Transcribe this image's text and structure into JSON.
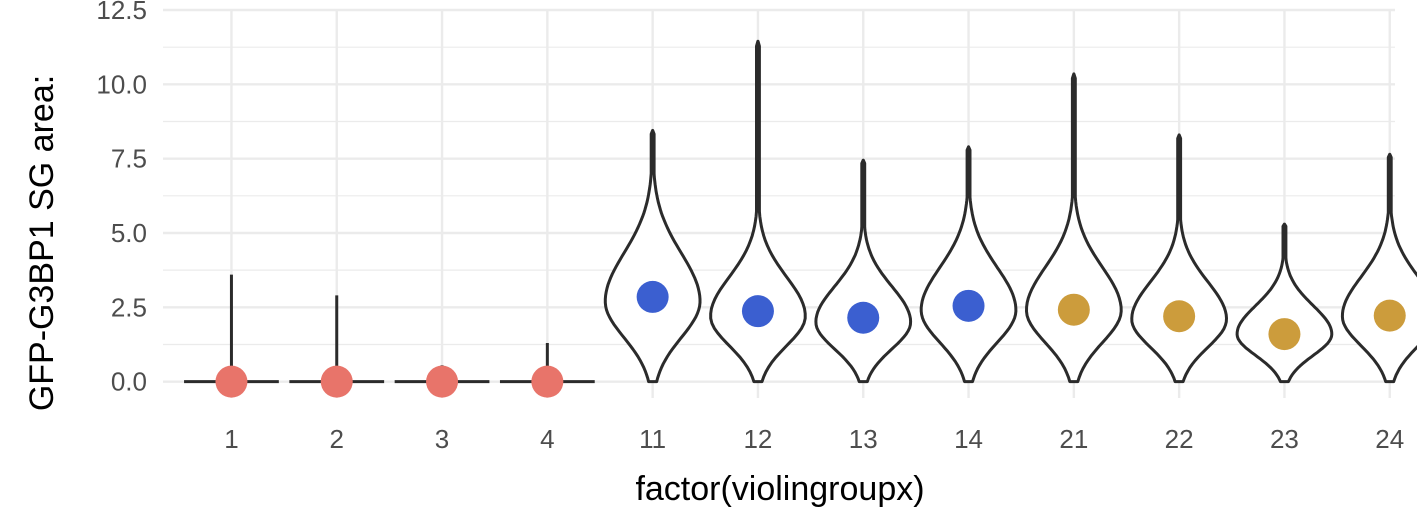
{
  "chart_data": {
    "type": "violin",
    "title": "",
    "xlabel": "factor(violingroupx)",
    "ylabel": "GFP-G3BP1 SG area:",
    "ylim": [
      -0.55,
      12.5
    ],
    "yticks": [
      "0.0",
      "2.5",
      "5.0",
      "7.5",
      "10.0",
      "12.5"
    ],
    "grid": true,
    "legend": "none",
    "categories": [
      "1",
      "2",
      "3",
      "4",
      "11",
      "12",
      "13",
      "14",
      "21",
      "22",
      "23",
      "24"
    ],
    "point_colors": [
      "#E8746A",
      "#E8746A",
      "#E8746A",
      "#E8746A",
      "#3B5FD0",
      "#3B5FD0",
      "#3B5FD0",
      "#3B5FD0",
      "#CC9C3C",
      "#CC9C3C",
      "#CC9C3C",
      "#CC9C3C"
    ],
    "violin_max": [
      3.6,
      2.9,
      0.55,
      1.3,
      8.45,
      11.45,
      7.45,
      7.9,
      10.35,
      8.3,
      5.3,
      7.65
    ],
    "violin_mode": [
      0.0,
      0.0,
      0.0,
      0.0,
      2.7,
      2.2,
      2.0,
      2.4,
      2.4,
      2.1,
      1.6,
      2.2
    ],
    "point_values": [
      0.0,
      0.0,
      0.0,
      0.0,
      2.85,
      2.37,
      2.15,
      2.55,
      2.42,
      2.2,
      1.6,
      2.22
    ]
  }
}
